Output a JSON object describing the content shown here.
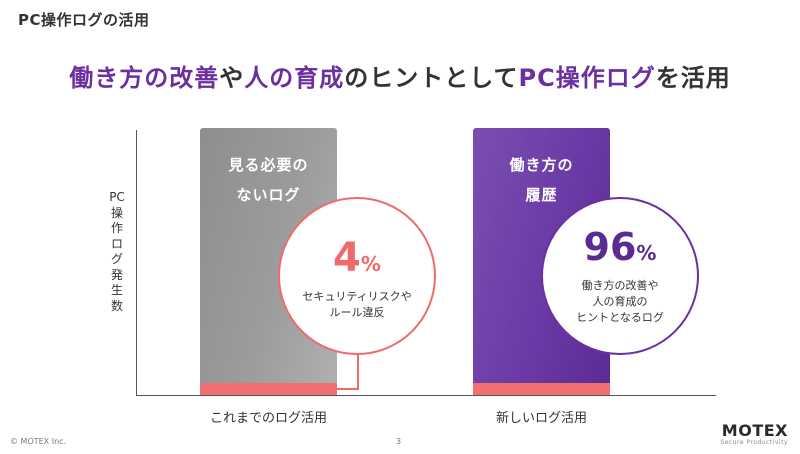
{
  "slide": {
    "title": "PC操作ログの活用",
    "headline_parts": [
      "働き方の改善",
      "や",
      "人の育成",
      "のヒントとして",
      "PC操作ログ",
      "を活用"
    ],
    "axis_label": "PC操作ログ発生数"
  },
  "bars": [
    {
      "label_line1": "見る必要の",
      "label_line2": "ないログ",
      "percent": "4",
      "percent_unit": "%",
      "desc_line1": "セキュリティリスクや",
      "desc_line2": "ルール違反",
      "desc_line3": "",
      "category": "これまでのログ活用"
    },
    {
      "label_line1": "働き方の",
      "label_line2": "履歴",
      "percent": "96",
      "percent_unit": "%",
      "desc_line1": "働き方の改善や",
      "desc_line2": "人の育成の",
      "desc_line3": "ヒントとなるログ",
      "category": "新しいログ活用"
    }
  ],
  "footer": {
    "copyright": "© MOTEX Inc.",
    "page_number": "3",
    "logo_name": "MOTEX",
    "logo_tagline": "Secure Productivity"
  },
  "colors": {
    "accent_purple": "#6b2fa0",
    "accent_red": "#ef6a6a",
    "bar_grey": "#9c9c9c"
  }
}
